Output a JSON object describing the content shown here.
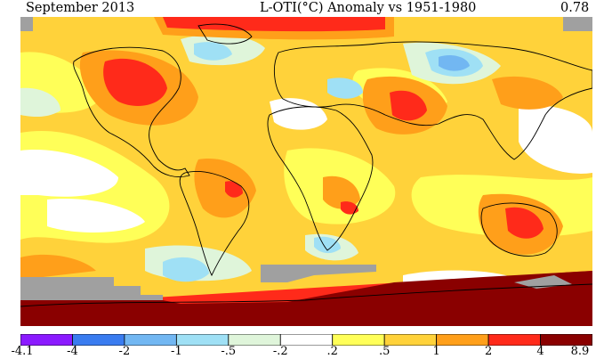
{
  "header": {
    "left": "September 2013",
    "center": "L-OTI(°C) Anomaly vs 1951-1980",
    "right": "0.78"
  },
  "legend": {
    "labels": [
      "-4.1",
      "-4",
      "-2",
      "-1",
      "-.5",
      "-.2",
      ".2",
      ".5",
      "1",
      "2",
      "4",
      "8.9"
    ],
    "colors": [
      "#8b1aff",
      "#3a7cf0",
      "#72b7f2",
      "#9fe0f5",
      "#dff5da",
      "#ffffff",
      "#ffff58",
      "#ffd23a",
      "#ff9f1a",
      "#ff2a1a",
      "#8a0000"
    ]
  },
  "map_colors": {
    "neutral": "#ffffff",
    "slight_warm": "#ffff58",
    "warm": "#ffd23a",
    "warmer": "#ff9f1a",
    "hot": "#ff2a1a",
    "extreme": "#8a0000",
    "slight_cool": "#dff5da",
    "cool": "#9fe0f5",
    "cooler": "#72b7f2",
    "no_data": "#a0a0a0",
    "coast": "#000000"
  }
}
